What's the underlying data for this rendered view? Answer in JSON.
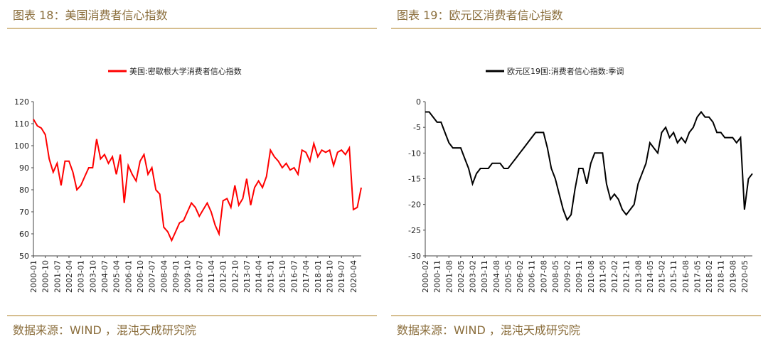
{
  "chart_data": [
    {
      "type": "line",
      "header": "图表 18：美国消费者信心指数",
      "source": "数据来源：WIND ，混沌天成研究院",
      "categories": [
        "2000-01",
        null,
        null,
        "2000-10",
        null,
        null,
        "2001-07",
        null,
        null,
        "2002-04",
        null,
        null,
        "2003-01",
        null,
        null,
        "2003-10",
        null,
        null,
        "2004-07",
        null,
        null,
        "2005-04",
        null,
        null,
        "2006-01",
        null,
        null,
        "2006-10",
        null,
        null,
        "2007-07",
        null,
        null,
        "2008-04",
        null,
        null,
        "2009-01",
        null,
        null,
        "2009-10",
        null,
        null,
        "2010-07",
        null,
        null,
        "2011-04",
        null,
        null,
        "2012-01",
        null,
        null,
        "2012-10",
        null,
        null,
        "2013-07",
        null,
        null,
        "2014-04",
        null,
        null,
        "2015-01",
        null,
        null,
        "2015-10",
        null,
        null,
        "2016-07",
        null,
        null,
        "2017-04",
        null,
        null,
        "2018-01",
        null,
        null,
        "2018-10",
        null,
        null,
        "2019-07",
        null,
        null,
        "2020-04",
        null,
        null
      ],
      "series": [
        {
          "name": "美国:密歇根大学消费者信心指数",
          "color": "#ff0000",
          "values": [
            112,
            109,
            108,
            105,
            94,
            88,
            92,
            82,
            93,
            93,
            88,
            80,
            82,
            86,
            90,
            90,
            103,
            94,
            96,
            92,
            95,
            87,
            96,
            74,
            91,
            87,
            84,
            93,
            96,
            87,
            90,
            80,
            78,
            63,
            61,
            57,
            61,
            65,
            66,
            70,
            74,
            72,
            68,
            71,
            74,
            70,
            64,
            60,
            75,
            76,
            72,
            82,
            73,
            76,
            85,
            73,
            81,
            84,
            81,
            86,
            98,
            95,
            93,
            90,
            92,
            89,
            90,
            87,
            98,
            97,
            93,
            101,
            95,
            98,
            97,
            98,
            91,
            97,
            98,
            96,
            99,
            71,
            72,
            81
          ]
        }
      ],
      "ylim": [
        50,
        120
      ],
      "yticks": [
        50,
        60,
        70,
        80,
        90,
        100,
        110,
        120
      ],
      "legend": "top"
    },
    {
      "type": "line",
      "header": "图表 19：欧元区消费者信心指数",
      "source": "数据来源：WIND ，混沌天成研究院",
      "categories": [
        "2000-02",
        null,
        null,
        "2000-11",
        null,
        null,
        "2001-08",
        null,
        null,
        "2002-05",
        null,
        null,
        "2003-02",
        null,
        null,
        "2003-11",
        null,
        null,
        "2004-08",
        null,
        null,
        "2005-05",
        null,
        null,
        "2006-02",
        null,
        null,
        "2006-11",
        null,
        null,
        "2007-08",
        null,
        null,
        "2008-05",
        null,
        null,
        "2009-02",
        null,
        null,
        "2009-11",
        null,
        null,
        "2010-08",
        null,
        null,
        "2011-05",
        null,
        null,
        "2012-02",
        null,
        null,
        "2012-11",
        null,
        null,
        "2013-08",
        null,
        null,
        "2014-05",
        null,
        null,
        "2015-02",
        null,
        null,
        "2015-11",
        null,
        null,
        "2016-08",
        null,
        null,
        "2017-05",
        null,
        null,
        "2018-02",
        null,
        null,
        "2018-11",
        null,
        null,
        "2019-08",
        null,
        null,
        "2020-05",
        null,
        null
      ],
      "series": [
        {
          "name": "欧元区19国:消费者信心指数:季调",
          "color": "#000000",
          "values": [
            -2,
            -2,
            -3,
            -4,
            -4,
            -6,
            -8,
            -9,
            -9,
            -9,
            -11,
            -13,
            -16,
            -14,
            -13,
            -13,
            -13,
            -12,
            -12,
            -12,
            -13,
            -13,
            -12,
            -11,
            -10,
            -9,
            -8,
            -7,
            -6,
            -6,
            -6,
            -9,
            -13,
            -15,
            -18,
            -21,
            -23,
            -22,
            -17,
            -13,
            -13,
            -16,
            -12,
            -10,
            -10,
            -10,
            -16,
            -19,
            -18,
            -19,
            -21,
            -22,
            -21,
            -20,
            -16,
            -14,
            -12,
            -8,
            -9,
            -10,
            -6,
            -5,
            -7,
            -6,
            -8,
            -7,
            -8,
            -6,
            -5,
            -3,
            -2,
            -3,
            -3,
            -4,
            -6,
            -6,
            -7,
            -7,
            -7,
            -8,
            -7,
            -21,
            -15,
            -14
          ]
        }
      ],
      "ylim": [
        -30,
        0
      ],
      "yticks": [
        -30,
        -25,
        -20,
        -15,
        -10,
        -5,
        0
      ],
      "legend": "top"
    }
  ]
}
